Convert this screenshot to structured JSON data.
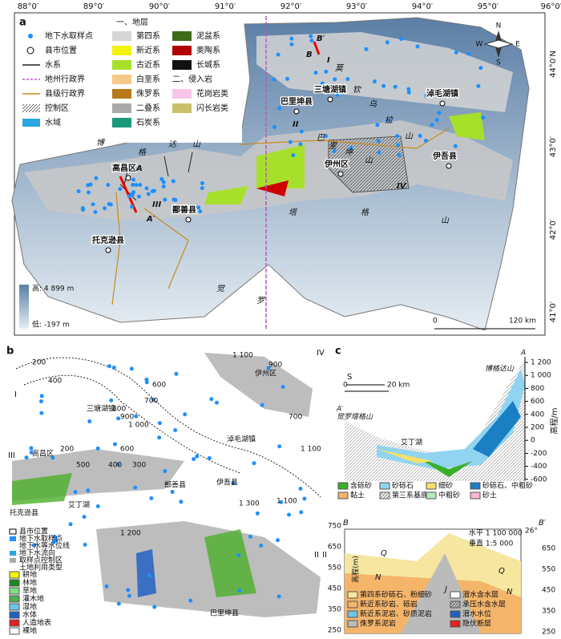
{
  "panel_a": {
    "label": "a",
    "lon_ticks": [
      "88°0′",
      "89°0′",
      "90°0′",
      "91°0′",
      "92°0′",
      "93°0′",
      "94°0′",
      "95°0′",
      "96°0′E"
    ],
    "lat_ticks": [
      "44°0′N",
      "43°0′",
      "42°0′",
      "41°0′"
    ],
    "legend": [
      "地下水取样点",
      "县市位置",
      "水系",
      "地州行政界",
      "县级行政界",
      "控制区",
      "水域"
    ],
    "strata_title": "一、地层",
    "strata": [
      "第四系",
      "新近系",
      "古近系",
      "白垩系",
      "侏罗系",
      "二叠系",
      "石炭系",
      "泥盆系",
      "奥陶系",
      "长城系"
    ],
    "intrusive_title": "二、侵入岩",
    "intrusive": [
      "花岗岩类",
      "闪长岩类"
    ],
    "elevation": [
      "高: 4 899 m",
      "低: -197 m"
    ],
    "scale": [
      "0",
      "120 km"
    ],
    "compass": [
      "N",
      "S",
      "W",
      "E"
    ],
    "places": [
      "高昌区",
      "托克逊县",
      "鄯善县",
      "巴里坤县",
      "伊州区",
      "伊吾县",
      "淖毛湖镇",
      "三塘湖镇"
    ],
    "mountains": [
      "博",
      "格",
      "达",
      "山",
      "觉",
      "罗",
      "塔",
      "格",
      "山",
      "莫",
      "钦",
      "乌",
      "拉",
      "山",
      "巴",
      "里",
      "坤",
      "山"
    ],
    "sections": [
      "A",
      "A′",
      "B",
      "B′",
      "I",
      "II",
      "III",
      "IV"
    ]
  },
  "panel_b": {
    "label": "b",
    "contours": [
      "200",
      "600",
      "400",
      "700",
      "800",
      "900",
      "1 000",
      "1 100",
      "1 300",
      "1 100",
      "1 100",
      "900",
      "700",
      "600",
      "200",
      "500",
      "400",
      "300",
      "1 200"
    ],
    "regions": [
      "I",
      "II",
      "III",
      "IV"
    ],
    "places": [
      "三塘湖镇",
      "高昌区",
      "鄯善县",
      "托克逊县",
      "艾丁湖",
      "伊州区",
      "淖毛湖镇",
      "伊吾县",
      "巴里坤县"
    ],
    "legend": [
      "县市位置",
      "地下水取样点",
      "地下水等水位线",
      "地下水流向",
      "取样点控制区",
      "土地利用类型"
    ],
    "landuse": [
      "耕地",
      "林地",
      "草地",
      "灌木地",
      "湿地",
      "水体",
      "人造地表",
      "裸地"
    ]
  },
  "panel_c": {
    "label": "c",
    "direction": "S",
    "scale": [
      "0",
      "20 km"
    ],
    "ends": [
      "A",
      "博格达山",
      "A′",
      "觉罗塔格山"
    ],
    "lake": "艾丁湖",
    "yticks": [
      "1 200",
      "1 000",
      "800",
      "600",
      "400",
      "200",
      "0",
      "-200",
      "-400",
      "-600"
    ],
    "ylabel": "高程/m",
    "legend": [
      "含砾砂",
      "砂砾石",
      "细砂",
      "砂砾石、中粗砂",
      "黏土",
      "第三系基底",
      "中粗砂",
      "砂土"
    ]
  },
  "panel_d": {
    "ends": [
      "B",
      "B′"
    ],
    "region": "II",
    "scale": [
      "水平 1 100 000",
      "垂直 1:5 000"
    ],
    "angle": "26°",
    "yticks_left": [
      "750",
      "650",
      "550",
      "450",
      "350",
      "250"
    ],
    "yticks_right": [
      "650",
      "550",
      "450",
      "350",
      "250"
    ],
    "ylabel": "高程(m)",
    "units": [
      "Q",
      "N",
      "J",
      "Q",
      "N"
    ],
    "legend": [
      "第四系砂砾石、粉细砂",
      "新近系砂岩、砾岩",
      "新近系泥岩、砂质泥岩",
      "侏罗系泥岩",
      "潜水含水层",
      "承压水含水层",
      "潜水水位",
      "隐伏断层"
    ]
  }
}
